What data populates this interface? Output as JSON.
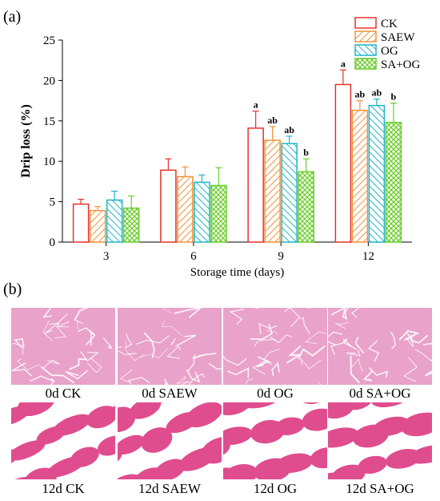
{
  "panel_a_label": "(a)",
  "panel_b_label": "(b)",
  "chart_data": {
    "type": "bar",
    "title": "",
    "xlabel": "Storage time (days)",
    "ylabel": "Drip loss (%)",
    "ylim": [
      0,
      25
    ],
    "yticks": [
      "0",
      "5",
      "10",
      "15",
      "20",
      "25"
    ],
    "categories": [
      "3",
      "6",
      "9",
      "12"
    ],
    "legend_position": "top-right",
    "series": [
      {
        "name": "CK",
        "color": "#e8322b",
        "pattern": "none",
        "values": [
          4.7,
          8.9,
          14.1,
          19.5
        ],
        "errors": [
          0.6,
          1.4,
          2.1,
          1.8
        ],
        "labels": [
          "",
          "",
          "a",
          "a"
        ]
      },
      {
        "name": "SAEW",
        "color": "#f0923a",
        "pattern": "diagonal",
        "values": [
          3.9,
          8.1,
          12.6,
          16.3
        ],
        "errors": [
          0.5,
          1.2,
          1.7,
          1.2
        ],
        "labels": [
          "",
          "",
          "ab",
          "ab"
        ]
      },
      {
        "name": "OG",
        "color": "#1fb4c8",
        "pattern": "diagonal-reverse",
        "values": [
          5.2,
          7.4,
          12.2,
          16.9
        ],
        "errors": [
          1.1,
          0.9,
          0.9,
          0.8
        ],
        "labels": [
          "",
          "",
          "ab",
          "ab"
        ]
      },
      {
        "name": "SA+OG",
        "color": "#6acd2a",
        "pattern": "crosshatch",
        "values": [
          4.2,
          7.0,
          8.7,
          14.8
        ],
        "errors": [
          1.5,
          2.2,
          1.6,
          2.4
        ],
        "labels": [
          "",
          "",
          "b",
          "b"
        ]
      }
    ]
  },
  "micrographs": [
    {
      "label": "0d CK",
      "stage": "fresh"
    },
    {
      "label": "0d SAEW",
      "stage": "fresh"
    },
    {
      "label": "0d OG",
      "stage": "fresh"
    },
    {
      "label": "0d SA+OG",
      "stage": "fresh"
    },
    {
      "label": "12d CK",
      "stage": "stored"
    },
    {
      "label": "12d SAEW",
      "stage": "stored"
    },
    {
      "label": "12d OG",
      "stage": "stored"
    },
    {
      "label": "12d SA+OG",
      "stage": "stored"
    }
  ],
  "colors": {
    "tissue_fresh": "#e9a2c9",
    "tissue_stored": "#df4d8f",
    "gap": "#ffffff"
  }
}
